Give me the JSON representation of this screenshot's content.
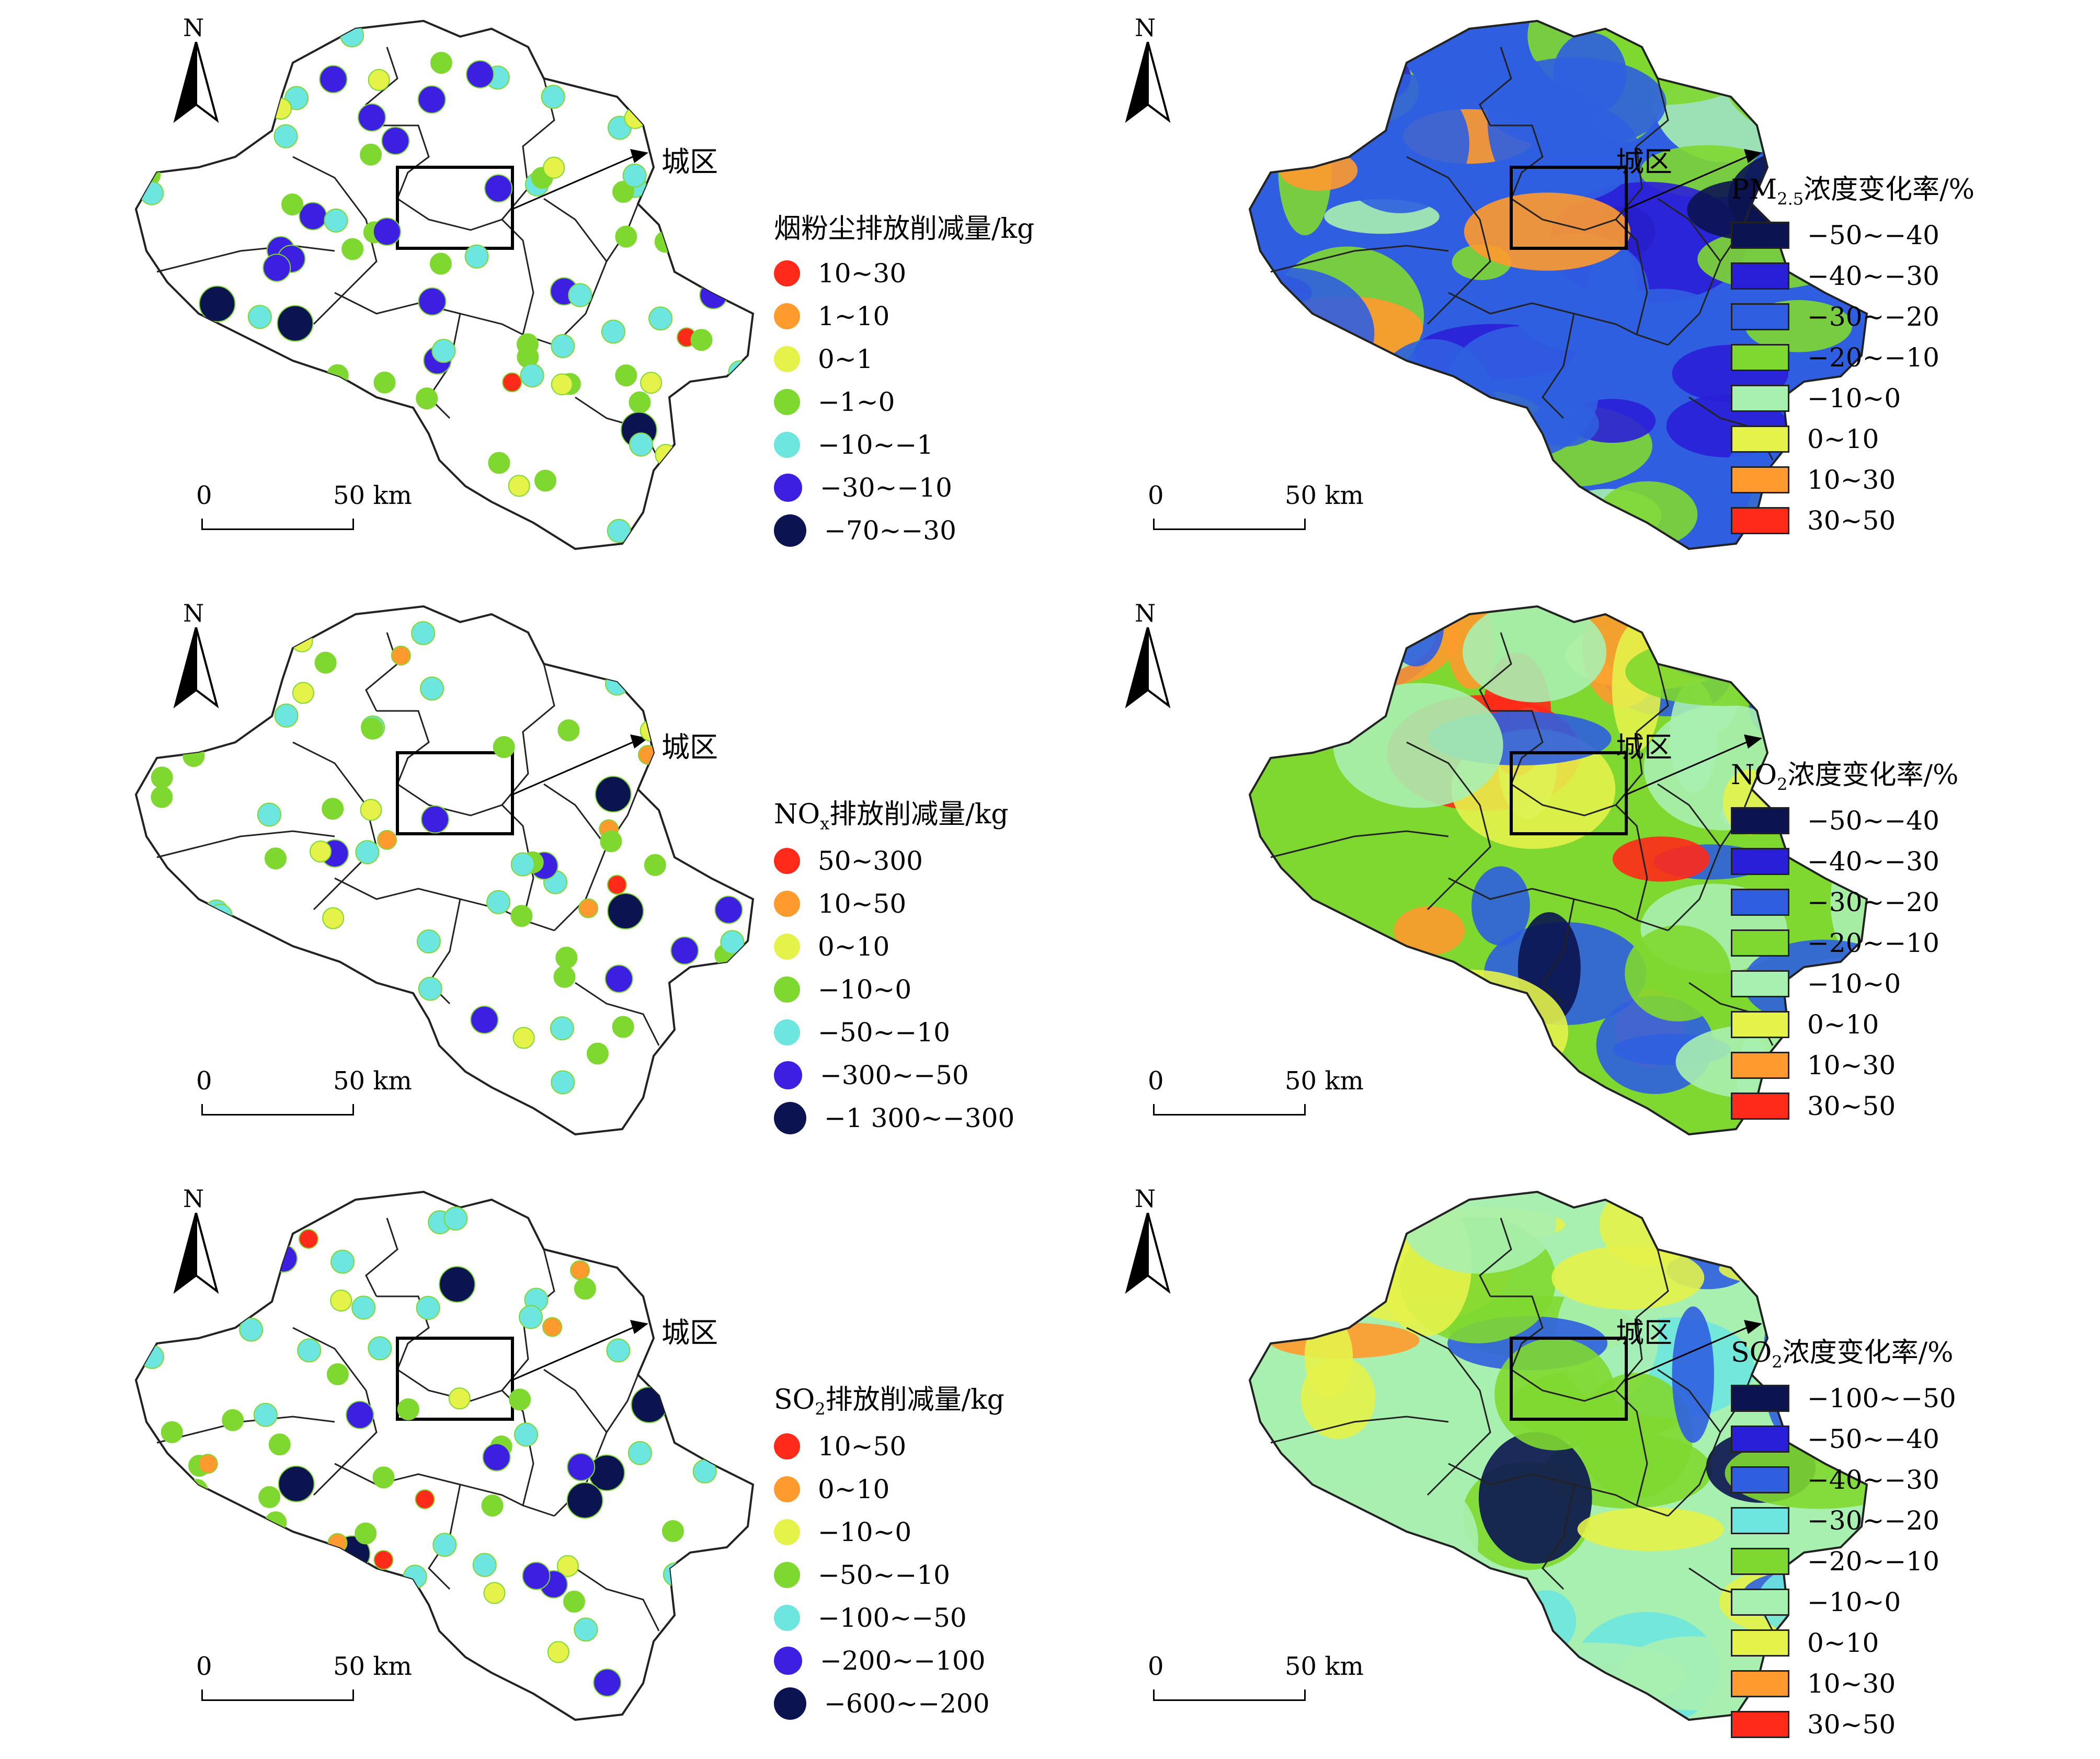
{
  "callout_label": "城区",
  "scale_bar": {
    "zero": "0",
    "distance": "50 km"
  },
  "north_label": "N",
  "emission_panels": [
    {
      "title_parts": [
        "烟粉尘排放削减量/kg"
      ],
      "classes": [
        {
          "label": "10~30",
          "color": "#ff2a1a"
        },
        {
          "label": "1~10",
          "color": "#ff9a2e"
        },
        {
          "label": "0~1",
          "color": "#e4f24a"
        },
        {
          "label": "−1~0",
          "color": "#7fd830"
        },
        {
          "label": "−10~−1",
          "color": "#6ee6e0"
        },
        {
          "label": "−30~−10",
          "color": "#3c1fe0"
        },
        {
          "label": "−70~−30",
          "color": "#0b1450"
        }
      ]
    },
    {
      "title_parts": [
        "NO",
        "x",
        "排放削减量/kg"
      ],
      "classes": [
        {
          "label": "50~300",
          "color": "#ff2a1a"
        },
        {
          "label": "10~50",
          "color": "#ff9a2e"
        },
        {
          "label": "0~10",
          "color": "#e4f24a"
        },
        {
          "label": "−10~0",
          "color": "#7fd830"
        },
        {
          "label": "−50~−10",
          "color": "#6ee6e0"
        },
        {
          "label": "−300~−50",
          "color": "#3c1fe0"
        },
        {
          "label": "−1 300~−300",
          "color": "#0b1450"
        }
      ]
    },
    {
      "title_parts": [
        "SO",
        "2",
        "排放削减量/kg"
      ],
      "classes": [
        {
          "label": "10~50",
          "color": "#ff2a1a"
        },
        {
          "label": "0~10",
          "color": "#ff9a2e"
        },
        {
          "label": "−10~0",
          "color": "#e4f24a"
        },
        {
          "label": "−50~−10",
          "color": "#7fd830"
        },
        {
          "label": "−100~−50",
          "color": "#6ee6e0"
        },
        {
          "label": "−200~−100",
          "color": "#3c1fe0"
        },
        {
          "label": "−600~−200",
          "color": "#0b1450"
        }
      ]
    }
  ],
  "concentration_panels": [
    {
      "title_parts": [
        "PM",
        "2.5",
        "浓度变化率/%"
      ],
      "base_color": "#2f5fe0",
      "classes": [
        {
          "label": "−50~−40",
          "color": "#0b1450"
        },
        {
          "label": "−40~−30",
          "color": "#2a1fd8"
        },
        {
          "label": "−30~−20",
          "color": "#2f5fe0"
        },
        {
          "label": "−20~−10",
          "color": "#7fd830"
        },
        {
          "label": "−10~0",
          "color": "#a8f0b0"
        },
        {
          "label": "0~10",
          "color": "#e4f24a"
        },
        {
          "label": "10~30",
          "color": "#ff9a2e"
        },
        {
          "label": "30~50",
          "color": "#ff2a1a"
        }
      ]
    },
    {
      "title_parts": [
        "NO",
        "2",
        "浓度变化率/%"
      ],
      "base_color": "#7fd830",
      "classes": [
        {
          "label": "−50~−40",
          "color": "#0b1450"
        },
        {
          "label": "−40~−30",
          "color": "#2a1fd8"
        },
        {
          "label": "−30~−20",
          "color": "#2f5fe0"
        },
        {
          "label": "−20~−10",
          "color": "#7fd830"
        },
        {
          "label": "−10~0",
          "color": "#a8f0b0"
        },
        {
          "label": "0~10",
          "color": "#e4f24a"
        },
        {
          "label": "10~30",
          "color": "#ff9a2e"
        },
        {
          "label": "30~50",
          "color": "#ff2a1a"
        }
      ]
    },
    {
      "title_parts": [
        "SO",
        "2",
        "浓度变化率/%"
      ],
      "base_color": "#a8f0b0",
      "classes": [
        {
          "label": "−100~−50",
          "color": "#0b1450"
        },
        {
          "label": "−50~−40",
          "color": "#2a1fd8"
        },
        {
          "label": "−40~−30",
          "color": "#2f5fe0"
        },
        {
          "label": "−30~−20",
          "color": "#6ee6e0"
        },
        {
          "label": "−20~−10",
          "color": "#7fd830"
        },
        {
          "label": "−10~0",
          "color": "#a8f0b0"
        },
        {
          "label": "0~10",
          "color": "#e4f24a"
        },
        {
          "label": "10~30",
          "color": "#ff9a2e"
        },
        {
          "label": "30~50",
          "color": "#ff2a1a"
        }
      ]
    }
  ]
}
